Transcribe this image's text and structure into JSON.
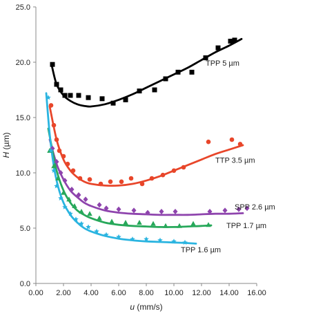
{
  "chart_data": {
    "type": "scatter",
    "title": "",
    "xlabel": {
      "symbol": "u",
      "unit": " (mm/s)"
    },
    "ylabel": {
      "symbol": "H",
      "unit": " (µm)"
    },
    "xlim": [
      0,
      16
    ],
    "ylim": [
      0,
      25
    ],
    "x_ticks": [
      "0.00",
      "2.00",
      "4.00",
      "6.00",
      "8.00",
      "10.00",
      "12.00",
      "14.00",
      "16.00"
    ],
    "y_ticks": [
      "0.0",
      "5.0",
      "10.0",
      "15.0",
      "20.0",
      "25.0"
    ],
    "grid": false,
    "legend": "inline labels at right end of each series",
    "series": [
      {
        "name": "TPP 5 µm",
        "color": "#000000",
        "marker": "square",
        "points": [
          [
            1.2,
            19.8
          ],
          [
            1.5,
            18.0
          ],
          [
            1.8,
            17.5
          ],
          [
            2.1,
            17.0
          ],
          [
            2.5,
            17.0
          ],
          [
            3.1,
            17.0
          ],
          [
            3.8,
            16.8
          ],
          [
            4.8,
            16.7
          ],
          [
            5.6,
            16.3
          ],
          [
            6.5,
            16.6
          ],
          [
            7.5,
            17.4
          ],
          [
            8.6,
            17.5
          ],
          [
            9.4,
            18.5
          ],
          [
            10.3,
            19.1
          ],
          [
            11.3,
            19.1
          ],
          [
            12.3,
            20.4
          ],
          [
            13.2,
            21.3
          ],
          [
            14.1,
            21.9
          ],
          [
            14.4,
            22.0
          ]
        ],
        "curve": [
          [
            1.15,
            19.7
          ],
          [
            1.5,
            18.0
          ],
          [
            2.0,
            17.0
          ],
          [
            2.5,
            16.5
          ],
          [
            3.0,
            16.2
          ],
          [
            3.5,
            16.05
          ],
          [
            4.0,
            16.0
          ],
          [
            5.0,
            16.2
          ],
          [
            6.0,
            16.6
          ],
          [
            7.0,
            17.1
          ],
          [
            8.0,
            17.7
          ],
          [
            9.0,
            18.3
          ],
          [
            10.0,
            18.9
          ],
          [
            11.0,
            19.5
          ],
          [
            12.0,
            20.2
          ],
          [
            13.0,
            20.9
          ],
          [
            14.0,
            21.5
          ],
          [
            14.9,
            22.1
          ]
        ]
      },
      {
        "name": "TTP 3.5 µm",
        "color": "#e8462a",
        "marker": "circle",
        "points": [
          [
            1.1,
            16.1
          ],
          [
            1.3,
            14.3
          ],
          [
            1.5,
            13.0
          ],
          [
            1.7,
            12.0
          ],
          [
            2.0,
            11.5
          ],
          [
            2.3,
            10.8
          ],
          [
            2.7,
            10.2
          ],
          [
            3.2,
            9.5
          ],
          [
            3.9,
            9.4
          ],
          [
            4.7,
            9.0
          ],
          [
            5.4,
            9.2
          ],
          [
            6.2,
            9.2
          ],
          [
            6.9,
            9.5
          ],
          [
            7.7,
            9.0
          ],
          [
            8.4,
            9.5
          ],
          [
            9.2,
            9.8
          ],
          [
            10.0,
            10.2
          ],
          [
            10.7,
            10.5
          ],
          [
            12.5,
            12.8
          ],
          [
            14.2,
            13.0
          ],
          [
            14.8,
            12.6
          ]
        ],
        "curve": [
          [
            1.0,
            16.0
          ],
          [
            1.5,
            13.0
          ],
          [
            2.0,
            11.2
          ],
          [
            2.5,
            10.2
          ],
          [
            3.0,
            9.6
          ],
          [
            3.5,
            9.2
          ],
          [
            4.0,
            9.0
          ],
          [
            5.0,
            8.85
          ],
          [
            6.0,
            8.85
          ],
          [
            7.0,
            9.0
          ],
          [
            8.0,
            9.3
          ],
          [
            9.0,
            9.7
          ],
          [
            10.0,
            10.2
          ],
          [
            11.0,
            10.7
          ],
          [
            12.0,
            11.2
          ],
          [
            13.0,
            11.7
          ],
          [
            14.0,
            12.1
          ],
          [
            15.0,
            12.5
          ]
        ]
      },
      {
        "name": "SPP 2.6 µm",
        "color": "#8e44ad",
        "marker": "diamond",
        "points": [
          [
            1.2,
            12.2
          ],
          [
            1.5,
            11.0
          ],
          [
            1.8,
            10.0
          ],
          [
            2.1,
            9.3
          ],
          [
            2.6,
            8.5
          ],
          [
            3.1,
            8.0
          ],
          [
            3.6,
            7.6
          ],
          [
            4.6,
            7.1
          ],
          [
            5.1,
            6.8
          ],
          [
            6.0,
            6.7
          ],
          [
            7.1,
            6.6
          ],
          [
            8.1,
            6.4
          ],
          [
            9.1,
            6.5
          ],
          [
            10.1,
            6.5
          ],
          [
            12.6,
            6.5
          ],
          [
            13.7,
            6.6
          ],
          [
            14.7,
            6.7
          ],
          [
            15.3,
            6.8
          ]
        ],
        "curve": [
          [
            1.0,
            13.0
          ],
          [
            1.5,
            10.8
          ],
          [
            2.0,
            9.4
          ],
          [
            2.5,
            8.4
          ],
          [
            3.0,
            7.8
          ],
          [
            3.5,
            7.3
          ],
          [
            4.0,
            7.0
          ],
          [
            5.0,
            6.6
          ],
          [
            6.0,
            6.4
          ],
          [
            7.0,
            6.3
          ],
          [
            8.0,
            6.25
          ],
          [
            9.0,
            6.2
          ],
          [
            10.0,
            6.2
          ],
          [
            11.0,
            6.2
          ],
          [
            12.0,
            6.25
          ],
          [
            13.0,
            6.3
          ],
          [
            14.0,
            6.3
          ],
          [
            15.0,
            6.35
          ]
        ]
      },
      {
        "name": "TPP 1.7 µm",
        "color": "#27a85a",
        "marker": "triangle",
        "points": [
          [
            1.0,
            12.0
          ],
          [
            1.3,
            10.6
          ],
          [
            1.6,
            9.5
          ],
          [
            2.0,
            8.2
          ],
          [
            2.4,
            7.6
          ],
          [
            2.8,
            7.0
          ],
          [
            3.3,
            6.5
          ],
          [
            3.9,
            6.3
          ],
          [
            4.6,
            5.9
          ],
          [
            5.5,
            5.6
          ],
          [
            6.5,
            5.5
          ],
          [
            7.5,
            5.5
          ],
          [
            8.5,
            5.4
          ],
          [
            9.4,
            5.2
          ],
          [
            10.4,
            5.2
          ],
          [
            11.4,
            5.4
          ],
          [
            12.5,
            5.3
          ]
        ],
        "curve": [
          [
            0.9,
            14.0
          ],
          [
            1.2,
            12.0
          ],
          [
            1.5,
            10.2
          ],
          [
            2.0,
            8.4
          ],
          [
            2.5,
            7.3
          ],
          [
            3.0,
            6.6
          ],
          [
            3.5,
            6.2
          ],
          [
            4.0,
            5.9
          ],
          [
            5.0,
            5.5
          ],
          [
            6.0,
            5.3
          ],
          [
            7.0,
            5.2
          ],
          [
            8.0,
            5.15
          ],
          [
            9.0,
            5.1
          ],
          [
            10.0,
            5.1
          ],
          [
            11.0,
            5.15
          ],
          [
            12.0,
            5.2
          ],
          [
            12.7,
            5.25
          ]
        ]
      },
      {
        "name": "TPP 1.6 µm",
        "color": "#2ab4e0",
        "marker": "star",
        "points": [
          [
            0.9,
            16.8
          ],
          [
            1.1,
            12.0
          ],
          [
            1.3,
            10.2
          ],
          [
            1.5,
            8.8
          ],
          [
            1.8,
            7.7
          ],
          [
            2.1,
            6.9
          ],
          [
            2.5,
            6.3
          ],
          [
            2.9,
            5.8
          ],
          [
            3.3,
            5.4
          ],
          [
            3.8,
            5.1
          ],
          [
            4.4,
            4.7
          ],
          [
            5.1,
            4.4
          ],
          [
            6.0,
            4.2
          ],
          [
            7.0,
            4.0
          ],
          [
            8.0,
            4.0
          ],
          [
            9.0,
            3.9
          ],
          [
            10.0,
            3.8
          ],
          [
            10.8,
            3.7
          ]
        ],
        "curve": [
          [
            0.75,
            17.2
          ],
          [
            1.0,
            13.5
          ],
          [
            1.3,
            10.6
          ],
          [
            1.6,
            8.8
          ],
          [
            2.0,
            7.3
          ],
          [
            2.5,
            6.2
          ],
          [
            3.0,
            5.5
          ],
          [
            3.5,
            5.0
          ],
          [
            4.0,
            4.7
          ],
          [
            5.0,
            4.3
          ],
          [
            6.0,
            4.05
          ],
          [
            7.0,
            3.9
          ],
          [
            8.0,
            3.8
          ],
          [
            9.0,
            3.75
          ],
          [
            10.0,
            3.7
          ],
          [
            11.0,
            3.65
          ],
          [
            11.6,
            3.6
          ]
        ]
      }
    ],
    "label_positions_in_data_units": [
      [
        12.3,
        19.7
      ],
      [
        13.0,
        10.9
      ],
      [
        14.4,
        6.7
      ],
      [
        13.8,
        5.0
      ],
      [
        10.5,
        2.8
      ]
    ]
  }
}
